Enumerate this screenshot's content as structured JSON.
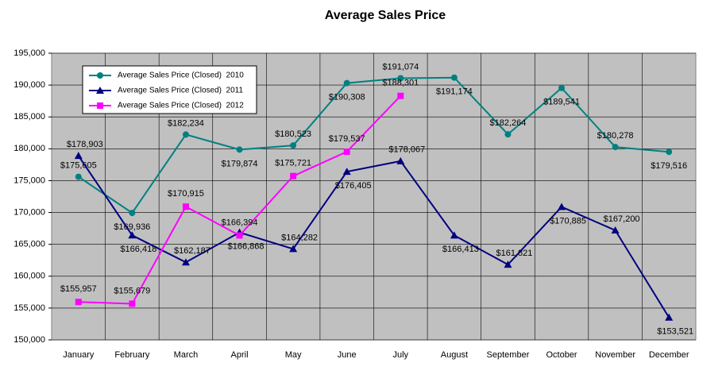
{
  "chart_data": {
    "type": "line",
    "title": "Average Sales Price",
    "categories": [
      "January",
      "February",
      "March",
      "April",
      "May",
      "June",
      "July",
      "August",
      "September",
      "October",
      "November",
      "December"
    ],
    "series": [
      {
        "name": "Average Sales Price (Closed)  2010",
        "color": "#008080",
        "marker": "circle",
        "values": [
          175605,
          169936,
          182234,
          179874,
          180523,
          190308,
          191074,
          191174,
          182264,
          189541,
          180278,
          179516
        ],
        "value_labels": [
          "$175,605",
          "$169,936",
          "$182,234",
          "$179,874",
          "$180,523",
          "$190,308",
          "$191,074",
          "$191,174",
          "$182,264",
          "$189,541",
          "$180,278",
          "$179,516"
        ]
      },
      {
        "name": "Average Sales Price (Closed)  2011",
        "color": "#000080",
        "marker": "triangle",
        "values": [
          178903,
          166418,
          162187,
          166868,
          164282,
          176405,
          178067,
          166413,
          161821,
          170885,
          167200,
          153521
        ],
        "value_labels": [
          "$178,903",
          "$166,418",
          "$162,187",
          "$166,868",
          "$164,282",
          "$176,405",
          "$178,067",
          "$166,413",
          "$161,821",
          "$170,885",
          "$167,200",
          "$153,521"
        ]
      },
      {
        "name": "Average Sales Price (Closed)  2012",
        "color": "#ff00ff",
        "marker": "square",
        "values": [
          155957,
          155679,
          170915,
          166394,
          175721,
          179537,
          188301,
          null,
          null,
          null,
          null,
          null
        ],
        "value_labels": [
          "$155,957",
          "$155,679",
          "$170,915",
          "$166,394",
          "$175,721",
          "$179,537",
          "$188,301",
          null,
          null,
          null,
          null,
          null
        ]
      }
    ],
    "ylim": [
      150000,
      195000
    ],
    "yticks": [
      {
        "value": 150000,
        "label": "150,000"
      },
      {
        "value": 155000,
        "label": "155,000"
      },
      {
        "value": 160000,
        "label": "160,000"
      },
      {
        "value": 165000,
        "label": "165,000"
      },
      {
        "value": 170000,
        "label": "170,000"
      },
      {
        "value": 175000,
        "label": "175,000"
      },
      {
        "value": 180000,
        "label": "180,000"
      },
      {
        "value": 185000,
        "label": "185,000"
      },
      {
        "value": 190000,
        "label": "190,000"
      },
      {
        "value": 195000,
        "label": "195,000"
      }
    ],
    "grid": true,
    "legend": "upper left",
    "background": "#c0c0c0"
  }
}
